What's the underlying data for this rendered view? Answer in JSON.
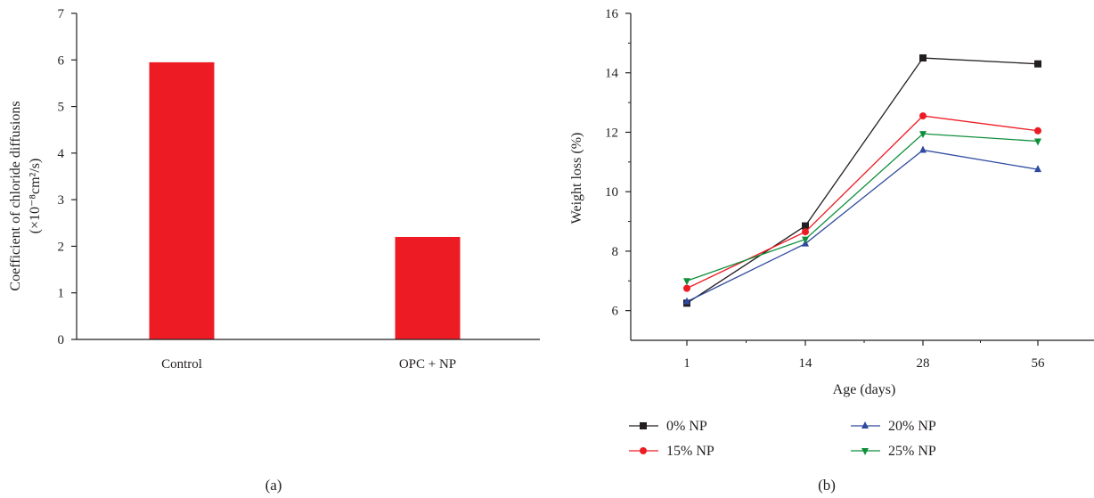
{
  "chart_data": [
    {
      "panel": "(a)",
      "type": "bar",
      "categories": [
        "Control",
        "OPC + NP"
      ],
      "values": [
        5.95,
        2.2
      ],
      "ylabel_line1": "Coefficient of chloride diffusions",
      "ylabel_line2": "(×10⁻⁸cm²/s)",
      "ylim": [
        0,
        7
      ],
      "yticks": [
        0,
        1,
        2,
        3,
        4,
        5,
        6,
        7
      ],
      "bar_color": "#ed1c24",
      "grid": false
    },
    {
      "panel": "(b)",
      "type": "line",
      "x": [
        "1",
        "14",
        "28",
        "56"
      ],
      "xlabel": "Age (days)",
      "ylabel": "Weight loss (%)",
      "ylim": [
        5,
        16
      ],
      "yticks": [
        6,
        8,
        10,
        12,
        14,
        16
      ],
      "grid": false,
      "legend_position": "bottom",
      "series": [
        {
          "name": "0% NP",
          "values": [
            6.25,
            8.85,
            14.5,
            14.3
          ],
          "color": "#231f20",
          "marker": "square"
        },
        {
          "name": "15% NP",
          "values": [
            6.75,
            8.65,
            12.55,
            12.05
          ],
          "color": "#ed1c24",
          "marker": "circle"
        },
        {
          "name": "20% NP",
          "values": [
            6.3,
            8.25,
            11.4,
            10.75
          ],
          "color": "#2e4a9e",
          "marker": "triangle-up"
        },
        {
          "name": "25% NP",
          "values": [
            7.0,
            8.4,
            11.95,
            11.7
          ],
          "color": "#0f8f3c",
          "marker": "triangle-down"
        }
      ]
    }
  ]
}
